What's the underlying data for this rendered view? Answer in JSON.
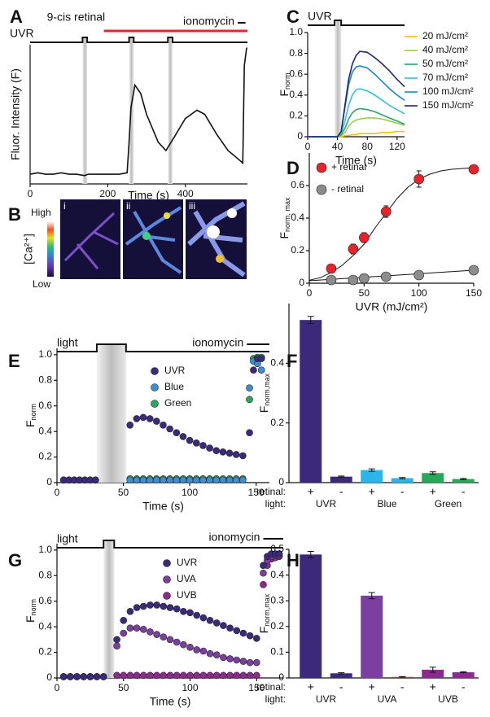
{
  "chart_data": [
    {
      "label": "A",
      "type": "line",
      "xlabel": "Time (s)",
      "ylabel": "Fluor. Intensity (F)",
      "xlim": [
        0,
        560
      ],
      "ylim": [
        0,
        1
      ],
      "xticks": [
        0,
        200,
        400
      ],
      "x": [
        0,
        20,
        40,
        60,
        80,
        100,
        120,
        140,
        150,
        170,
        200,
        230,
        250,
        255,
        260,
        270,
        285,
        300,
        315,
        330,
        350,
        370,
        400,
        430,
        450,
        480,
        510,
        540,
        548,
        552,
        558
      ],
      "series": [
        {
          "color": "#111111",
          "values": [
            0.07,
            0.08,
            0.07,
            0.07,
            0.08,
            0.07,
            0.07,
            0.06,
            0.07,
            0.07,
            0.07,
            0.07,
            0.08,
            0.3,
            0.55,
            0.71,
            0.65,
            0.5,
            0.4,
            0.3,
            0.24,
            0.33,
            0.47,
            0.53,
            0.5,
            0.36,
            0.24,
            0.17,
            0.15,
            0.85,
            0.98
          ]
        }
      ],
      "stim": {
        "line_label": "UVR",
        "pulses": [
          [
            135,
            147
          ],
          [
            255,
            267
          ],
          [
            355,
            367
          ]
        ],
        "retinal_label": "9-cis retinal",
        "retinal": [
          190,
          560
        ],
        "ionomycin_label": "ionomycin",
        "ionomycin": [
          535,
          555
        ]
      }
    },
    {
      "label": "C",
      "type": "line",
      "xlabel": "Time (s)",
      "ylabel": {
        "main": "F",
        "sub": "norm"
      },
      "xlim": [
        0,
        130
      ],
      "ylim": [
        0,
        1
      ],
      "xticks": [
        0,
        40,
        80,
        120
      ],
      "yticks": [
        0,
        0.2,
        0.4,
        0.6,
        0.8,
        {
          "value": 1,
          "label": "1.0"
        }
      ],
      "x": [
        0,
        20,
        30,
        40,
        45,
        50,
        55,
        60,
        65,
        70,
        80,
        90,
        100,
        110,
        120,
        130
      ],
      "series": [
        {
          "name": "20 mJ/cm²",
          "color": "#f2c200",
          "values": [
            0,
            0,
            0,
            0,
            0,
            0.01,
            0.01,
            0.02,
            0.02,
            0.03,
            0.03,
            0.03,
            0.04,
            0.04,
            0.05,
            0.05
          ]
        },
        {
          "name": "40 mJ/cm²",
          "color": "#9ccc48",
          "values": [
            0,
            0,
            0,
            0,
            0.01,
            0.04,
            0.1,
            0.14,
            0.16,
            0.17,
            0.18,
            0.18,
            0.17,
            0.15,
            0.13,
            0.11
          ]
        },
        {
          "name": "50 mJ/cm²",
          "color": "#2aa56a",
          "values": [
            0,
            0,
            0,
            0,
            0.02,
            0.08,
            0.17,
            0.23,
            0.26,
            0.27,
            0.26,
            0.24,
            0.21,
            0.18,
            0.15,
            0.12
          ]
        },
        {
          "name": "70 mJ/cm²",
          "color": "#32c0d8",
          "values": [
            0,
            0,
            0,
            0,
            0.03,
            0.15,
            0.3,
            0.4,
            0.45,
            0.46,
            0.44,
            0.4,
            0.35,
            0.3,
            0.26,
            0.22
          ]
        },
        {
          "name": "100 mJ/cm²",
          "color": "#1a86c4",
          "values": [
            0,
            0,
            0,
            0,
            0.05,
            0.28,
            0.5,
            0.62,
            0.67,
            0.68,
            0.66,
            0.6,
            0.53,
            0.46,
            0.4,
            0.35
          ]
        },
        {
          "name": "150 mJ/cm²",
          "color": "#1e2a6e",
          "values": [
            0,
            0,
            0,
            0,
            0.05,
            0.3,
            0.55,
            0.7,
            0.78,
            0.82,
            0.81,
            0.76,
            0.7,
            0.63,
            0.55,
            0.48
          ]
        }
      ],
      "stim": {
        "line_label": "UVR",
        "pulses": [
          [
            36,
            45
          ]
        ]
      }
    },
    {
      "label": "D",
      "type": "scatter",
      "xlabel": "UVR (mJ/cm²)",
      "ylabel": {
        "main": "F",
        "sub": "norm, max"
      },
      "xlim": [
        0,
        150
      ],
      "ylim": [
        0,
        0.8
      ],
      "xticks": [
        0,
        50,
        100,
        150
      ],
      "yticks": [
        0,
        0.2,
        0.4,
        0.6
      ],
      "x": [
        20,
        40,
        50,
        70,
        100,
        150
      ],
      "series": [
        {
          "name": "+ retinal",
          "color": "#e8242a",
          "values": [
            0.09,
            0.21,
            0.28,
            0.44,
            0.64,
            0.7
          ],
          "errors": [
            0.02,
            0.03,
            0.03,
            0.035,
            0.05,
            0.02
          ]
        },
        {
          "name": "- retinal",
          "color": "#8c8c8c",
          "values": [
            0.02,
            0.02,
            0.03,
            0.04,
            0.05,
            0.08
          ],
          "errors": [
            0.01,
            0.01,
            0.01,
            0.01,
            0.01,
            0.01
          ]
        }
      ],
      "fits": [
        {
          "x": [
            0,
            10,
            20,
            30,
            40,
            50,
            60,
            70,
            80,
            90,
            100,
            110,
            120,
            130,
            140,
            150
          ],
          "values": [
            0.018,
            0.034,
            0.066,
            0.11,
            0.17,
            0.24,
            0.34,
            0.43,
            0.52,
            0.59,
            0.64,
            0.67,
            0.69,
            0.7,
            0.705,
            0.71
          ]
        },
        {
          "x": [
            0,
            150
          ],
          "values": [
            0.015,
            0.08
          ]
        }
      ]
    },
    {
      "label": "E",
      "type": "scatter",
      "xlabel": "Time (s)",
      "ylabel": {
        "main": "F",
        "sub": "norm"
      },
      "xlim": [
        0,
        160
      ],
      "ylim": [
        0,
        1.05
      ],
      "xticks": [
        0,
        50,
        100,
        150
      ],
      "yticks": [
        0,
        0.2,
        0.4,
        0.6,
        0.8,
        {
          "value": 1,
          "label": "1.0"
        }
      ],
      "x": [
        5,
        9,
        13,
        17,
        21,
        25,
        29,
        55,
        60,
        65,
        70,
        75,
        80,
        85,
        90,
        95,
        100,
        105,
        110,
        115,
        120,
        125,
        130,
        135,
        140,
        145,
        148,
        151,
        154
      ],
      "series": [
        {
          "name": "UVR",
          "color": "#3b2a7a",
          "values": [
            0.02,
            0.02,
            0.02,
            0.02,
            0.02,
            0.02,
            0.02,
            0.45,
            0.5,
            0.51,
            0.5,
            0.48,
            0.45,
            0.42,
            0.39,
            0.36,
            0.33,
            0.31,
            0.29,
            0.27,
            0.25,
            0.24,
            0.23,
            0.22,
            0.21,
            0.39,
            0.88,
            0.97,
            0.97
          ]
        },
        {
          "name": "Blue",
          "color": "#3f8fd0",
          "values": [
            0.02,
            0.02,
            0.02,
            0.02,
            0.02,
            0.02,
            0.02,
            0.02,
            0.02,
            0.02,
            0.02,
            0.02,
            0.02,
            0.02,
            0.02,
            0.02,
            0.02,
            0.02,
            0.02,
            0.02,
            0.02,
            0.02,
            0.02,
            0.02,
            0.02,
            0.74,
            0.95,
            0.93,
            0.88
          ]
        },
        {
          "name": "Green",
          "color": "#2ca65a",
          "values": [
            0.02,
            0.02,
            0.02,
            0.02,
            0.02,
            0.02,
            0.02,
            0.03,
            0.03,
            0.03,
            0.03,
            0.03,
            0.03,
            0.03,
            0.03,
            0.03,
            0.03,
            0.03,
            0.03,
            0.03,
            0.03,
            0.03,
            0.03,
            0.03,
            0.03,
            0.65,
            0.97,
            0.98,
            0.98
          ]
        }
      ],
      "stim": {
        "line_label": "light",
        "pulses": [
          [
            30,
            52
          ]
        ],
        "ionomycin_label": "ionomycin",
        "ionomycin": [
          143,
          160
        ]
      }
    },
    {
      "label": "F",
      "type": "bar",
      "ylabel": {
        "main": "F",
        "sub": "norm,max"
      },
      "ylim": [
        0,
        0.6
      ],
      "yticks": [
        0,
        0.2,
        0.4
      ],
      "categories": [
        "+",
        "-",
        "+",
        "-",
        "+",
        "-"
      ],
      "groups": [
        "UVR",
        "Blue",
        "Green"
      ],
      "row_labels": [
        "retinal:",
        "light:"
      ],
      "values": [
        0.545,
        0.02,
        0.042,
        0.015,
        0.032,
        0.012
      ],
      "errors": [
        0.012,
        0.002,
        0.004,
        0.002,
        0.004,
        0.002
      ],
      "colors": [
        "#3b2a7a",
        "#3b2a7a",
        "#2bb5e8",
        "#2bb5e8",
        "#27a85a",
        "#27a85a"
      ]
    },
    {
      "label": "G",
      "type": "scatter",
      "xlabel": "Time (s)",
      "ylabel": {
        "main": "F",
        "sub": "norm"
      },
      "xlim": [
        0,
        170
      ],
      "ylim": [
        0,
        1.05
      ],
      "xticks": [
        0,
        50,
        100,
        150
      ],
      "yticks": [
        0,
        0.2,
        0.4,
        0.6,
        0.8,
        {
          "value": 1,
          "label": "1.0"
        }
      ],
      "x": [
        5,
        10,
        15,
        20,
        25,
        30,
        35,
        45,
        50,
        55,
        60,
        65,
        70,
        75,
        80,
        85,
        90,
        95,
        100,
        105,
        110,
        115,
        120,
        125,
        130,
        135,
        140,
        145,
        150,
        155,
        158,
        161,
        164,
        167
      ],
      "series": [
        {
          "name": "UVR",
          "color": "#3b2a7a",
          "values": [
            0.01,
            0.01,
            0.01,
            0.01,
            0.01,
            0.01,
            0.01,
            0.3,
            0.45,
            0.52,
            0.55,
            0.56,
            0.57,
            0.57,
            0.56,
            0.55,
            0.54,
            0.52,
            0.51,
            0.49,
            0.47,
            0.45,
            0.43,
            0.41,
            0.39,
            0.37,
            0.35,
            0.33,
            0.31,
            0.88,
            0.95,
            0.97,
            0.97,
            0.97
          ]
        },
        {
          "name": "UVA",
          "color": "#7b3fa0",
          "values": [
            0.01,
            0.01,
            0.01,
            0.01,
            0.01,
            0.01,
            0.01,
            0.25,
            0.35,
            0.39,
            0.39,
            0.38,
            0.36,
            0.34,
            0.32,
            0.3,
            0.28,
            0.26,
            0.24,
            0.22,
            0.21,
            0.19,
            0.18,
            0.16,
            0.15,
            0.14,
            0.13,
            0.12,
            0.12,
            0.82,
            0.92,
            0.95,
            0.96,
            0.96
          ]
        },
        {
          "name": "UVB",
          "color": "#8e2a8e",
          "values": [
            0.01,
            0.01,
            0.01,
            0.01,
            0.01,
            0.01,
            0.01,
            0.02,
            0.02,
            0.02,
            0.02,
            0.02,
            0.02,
            0.02,
            0.02,
            0.02,
            0.02,
            0.02,
            0.02,
            0.02,
            0.02,
            0.02,
            0.02,
            0.02,
            0.02,
            0.02,
            0.02,
            0.02,
            0.02,
            0.73,
            0.88,
            0.93,
            0.94,
            0.95
          ]
        }
      ],
      "stim": {
        "line_label": "light",
        "pulses": [
          [
            35,
            43
          ]
        ],
        "ionomycin_label": "ionomycin",
        "ionomycin": [
          155,
          170
        ]
      }
    },
    {
      "label": "H",
      "type": "bar",
      "ylabel": {
        "main": "F",
        "sub": "norm,max"
      },
      "ylim": [
        0,
        0.5
      ],
      "yticks": [
        0,
        0.1,
        0.2,
        0.3,
        0.4,
        0.5
      ],
      "categories": [
        "+",
        "-",
        "+",
        "-",
        "+",
        "-"
      ],
      "groups": [
        "UVR",
        "UVA",
        "UVB"
      ],
      "row_labels": [
        "retinal:",
        "light:"
      ],
      "values": [
        0.48,
        0.018,
        0.32,
        0.004,
        0.032,
        0.022
      ],
      "errors": [
        0.012,
        0.002,
        0.012,
        0.001,
        0.01,
        0.002
      ],
      "colors": [
        "#3b2a7a",
        "#3b2a7a",
        "#7b3fa0",
        "#7b3fa0",
        "#8e2a8e",
        "#8e2a8e"
      ]
    }
  ],
  "panel_b": {
    "label": "B",
    "colorbar": {
      "title": "[Ca²⁺]",
      "high": "High",
      "low": "Low"
    },
    "panels": [
      "i",
      "ii",
      "iii"
    ]
  }
}
